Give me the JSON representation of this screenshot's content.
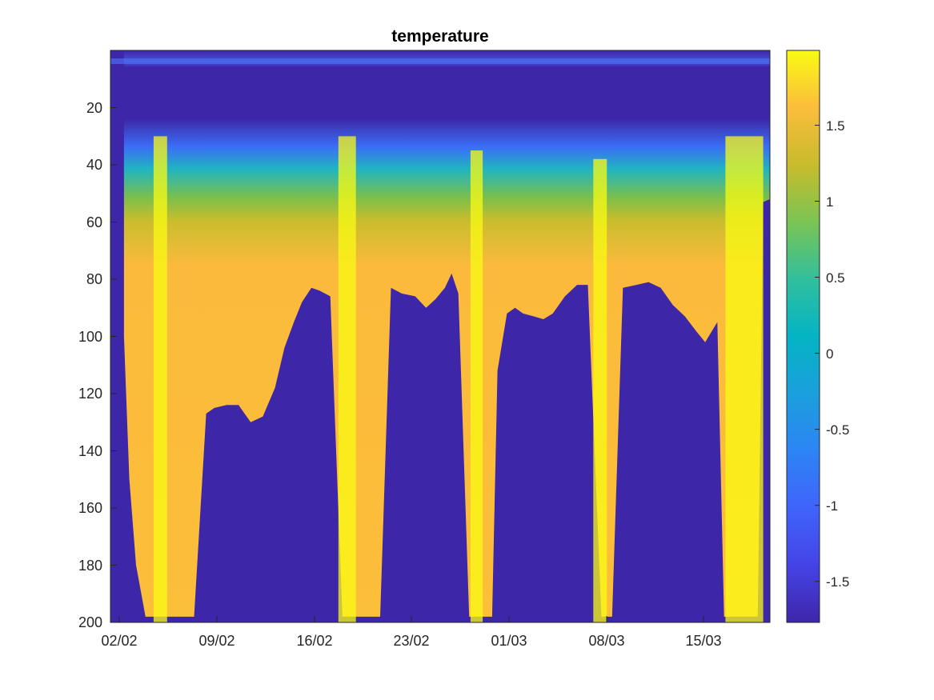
{
  "chart_data": {
    "type": "heatmap",
    "title": "temperature",
    "xlabel": "",
    "ylabel": "",
    "x_range": [
      "01/02",
      "19/03"
    ],
    "x_tick_labels": [
      "02/02",
      "09/02",
      "16/02",
      "23/02",
      "01/03",
      "08/03",
      "15/03"
    ],
    "y_range": [
      0,
      200
    ],
    "y_reversed": true,
    "y_tick_labels": [
      "20",
      "40",
      "60",
      "80",
      "100",
      "120",
      "140",
      "160",
      "180",
      "200"
    ],
    "y_tick_values": [
      20,
      40,
      60,
      80,
      100,
      120,
      140,
      160,
      180,
      200
    ],
    "colorbar": {
      "colormap": "parula",
      "range": [
        -1.75,
        1.95
      ],
      "tick_values": [
        -1.5,
        -1,
        -0.5,
        0,
        0.5,
        1,
        1.5
      ],
      "tick_labels": [
        "-1.5",
        "-1",
        "-0.5",
        "0",
        "0.5",
        "1",
        "1.5"
      ]
    },
    "colors": {
      "background": "#3e26a8",
      "warm": "#fbba3b",
      "hot": "#f9fb14",
      "mid": "#a9bf23",
      "cool": "#21b5c0",
      "cold": "#3a6ef6"
    },
    "profile_bottom_depth_m": [
      [
        1.0,
        100
      ],
      [
        1.4,
        150
      ],
      [
        1.9,
        180
      ],
      [
        2.6,
        198
      ],
      [
        3.5,
        198
      ],
      [
        4.3,
        198
      ],
      [
        5.2,
        198
      ],
      [
        6.2,
        198
      ],
      [
        7.1,
        127
      ],
      [
        7.7,
        125
      ],
      [
        8.6,
        124
      ],
      [
        9.5,
        124
      ],
      [
        10.4,
        130
      ],
      [
        11.3,
        128
      ],
      [
        12.2,
        118
      ],
      [
        12.9,
        104
      ],
      [
        13.6,
        95
      ],
      [
        14.2,
        88
      ],
      [
        14.9,
        83
      ],
      [
        15.5,
        84
      ],
      [
        16.3,
        86
      ],
      [
        17.2,
        198
      ],
      [
        18.2,
        198
      ],
      [
        19.0,
        198
      ],
      [
        20.0,
        198
      ],
      [
        20.8,
        83
      ],
      [
        21.6,
        85
      ],
      [
        22.6,
        86
      ],
      [
        23.4,
        90
      ],
      [
        24.1,
        87
      ],
      [
        24.8,
        83
      ],
      [
        25.3,
        78
      ],
      [
        25.8,
        85
      ],
      [
        26.6,
        198
      ],
      [
        27.2,
        198
      ],
      [
        27.8,
        198
      ],
      [
        28.3,
        198
      ],
      [
        28.7,
        112
      ],
      [
        29.4,
        92
      ],
      [
        30.0,
        90
      ],
      [
        30.6,
        92
      ],
      [
        31.4,
        93
      ],
      [
        32.1,
        94
      ],
      [
        32.8,
        92
      ],
      [
        33.7,
        86
      ],
      [
        34.6,
        82
      ],
      [
        35.4,
        82
      ],
      [
        36.4,
        198
      ],
      [
        37.2,
        198
      ],
      [
        38.0,
        83
      ],
      [
        39.0,
        82
      ],
      [
        39.9,
        81
      ],
      [
        40.8,
        83
      ],
      [
        41.7,
        89
      ],
      [
        42.6,
        93
      ],
      [
        43.4,
        98
      ],
      [
        44.1,
        102
      ],
      [
        45.0,
        95
      ],
      [
        45.5,
        198
      ],
      [
        46.3,
        198
      ],
      [
        47.1,
        198
      ],
      [
        48.0,
        198
      ],
      [
        48.4,
        53
      ],
      [
        48.9,
        52
      ]
    ]
  }
}
